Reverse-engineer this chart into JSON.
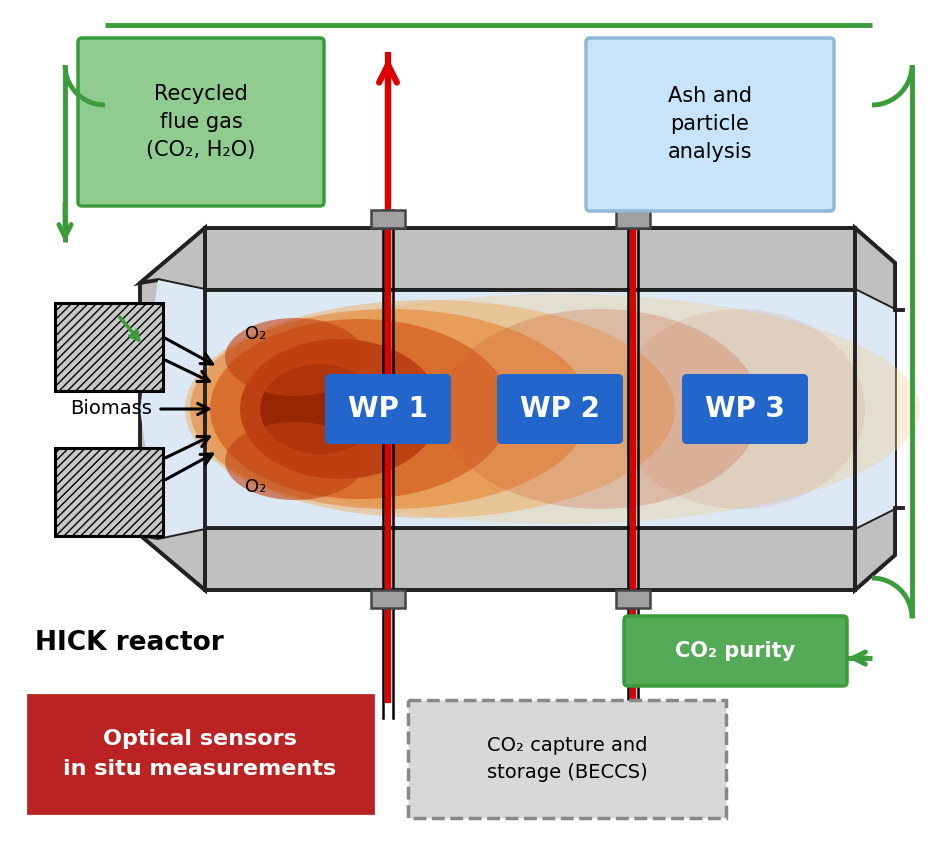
{
  "reactor_label": "HICK reactor",
  "wp_labels": [
    "WP 1",
    "WP 2",
    "WP 3"
  ],
  "wp_color": "#2266cc",
  "recycled_text": "Recycled\nflue gas\n(CO₂, H₂O)",
  "recycled_bg": "#90cc90",
  "recycled_border": "#3a9c3a",
  "ash_text": "Ash and\nparticle\nanalysis",
  "ash_bg": "#c8e4f8",
  "ash_border": "#90b8d8",
  "optical_text": "Optical sensors\nin situ measurements",
  "optical_bg": "#bb2222",
  "co2_capture_text": "CO₂ capture and\nstorage (BECCS)",
  "co2_capture_bg": "#d0d0d0",
  "co2_capture_border": "#888888",
  "co2_purity_text": "CO₂ purity",
  "co2_purity_bg": "#55aa55",
  "co2_purity_border": "#3a9c3a",
  "biomass_text": "Biomass",
  "o2_text": "O₂",
  "green": "#3a9c3a",
  "red": "#dd0000",
  "reactor_gray": "#c0c0c0",
  "wall_dark": "#888888",
  "inner_bg": "#dce8f4",
  "dark": "#222222",
  "flange_gray": "#a0a0a0"
}
